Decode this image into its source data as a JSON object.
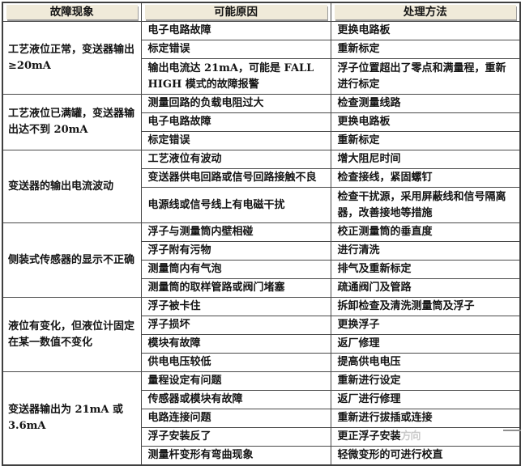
{
  "header": {
    "fault": "故障现象",
    "cause": "可能原因",
    "fix": "处理方法"
  },
  "groups": [
    {
      "fault": "工艺液位正常，变送器输出≥20mA",
      "rows": [
        {
          "cause": "电子电路故障",
          "fix": "更换电路板"
        },
        {
          "cause": "标定错误",
          "fix": "重新标定"
        },
        {
          "cause": "输出电流达 21mA，可能是 FALL HIGH 模式的故障报警",
          "fix": "浮子位置超出了零点和满量程，重新进行标定"
        }
      ]
    },
    {
      "fault": "工艺液位已满罐，变送器输出达不到 20mA",
      "rows": [
        {
          "cause": "测量回路的负载电阻过大",
          "fix": "检查测量线路"
        },
        {
          "cause": "电子电路故障",
          "fix": "更换电路板"
        },
        {
          "cause": "标定错误",
          "fix": "重新标定"
        }
      ]
    },
    {
      "fault": "变送器的输出电流波动",
      "rows": [
        {
          "cause": "工艺液位有波动",
          "fix": "增大阻尼时间"
        },
        {
          "cause": "变送器供电回路或信号回路接触不良",
          "fix": "检查接线，紧固螺钉"
        },
        {
          "cause": "电源线或信号线上有电磁干扰",
          "fix": "检查干扰源，采用屏蔽线和信号隔离器，改善接地等措施"
        }
      ]
    },
    {
      "fault": "侧装式传感器的显示不正确",
      "rows": [
        {
          "cause": "浮子与测量筒内壁相碰",
          "fix": "校正测量筒的垂直度"
        },
        {
          "cause": "浮子附有污物",
          "fix": "进行清洗"
        },
        {
          "cause": "测量筒内有气泡",
          "fix": "排气及重新标定"
        },
        {
          "cause": "测量筒的取样管路或阀门堵塞",
          "fix": "疏通阀门及管路"
        }
      ]
    },
    {
      "fault": "液位有变化，但液位计固定在某一数值不变化",
      "rows": [
        {
          "cause": "浮子被卡住",
          "fix": "拆卸检查及清洗测量筒及浮子"
        },
        {
          "cause": "浮子损坏",
          "fix": "更换浮子"
        },
        {
          "cause": "模块有故障",
          "fix": "返厂修理"
        },
        {
          "cause": "供电电压较低",
          "fix": "提高供电电压"
        }
      ]
    },
    {
      "fault": "变送器输出为 21mA 或 3.6mA",
      "rows": [
        {
          "cause": "量程设定有问题",
          "fix": "重新进行设定"
        },
        {
          "cause": "传感器或模块有故障",
          "fix": "返厂进行修理"
        },
        {
          "cause": "电路连接问题",
          "fix": "重新进行拔插或连接"
        },
        {
          "cause": "浮子安装反了",
          "fix": "更正浮子安装",
          "fix_faded": "方向"
        },
        {
          "cause": "测量杆变形有弯曲现象",
          "fix": "轻微变形的可进行校直"
        }
      ]
    }
  ],
  "watermark": {
    "line_color": "#8f8f8f"
  }
}
